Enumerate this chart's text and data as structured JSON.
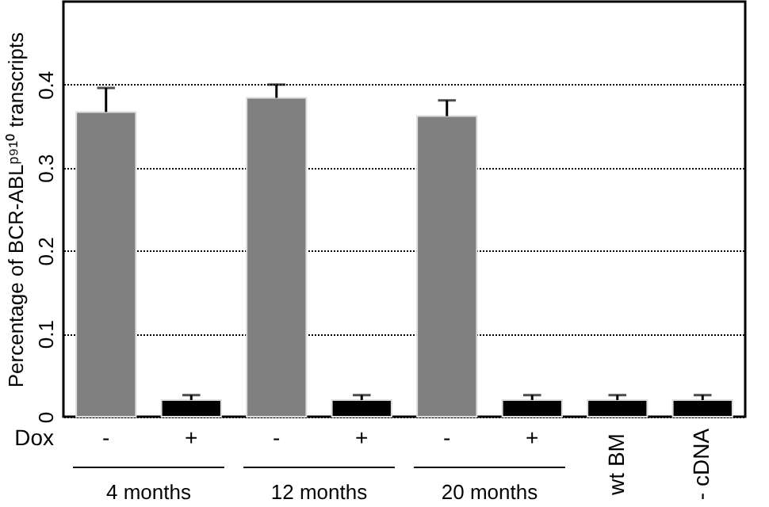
{
  "chart_data": {
    "type": "bar",
    "ylabel": "Percentage of BCR-ABLᵖ⁹¹⁰ transcripts",
    "categories": [
      "-",
      "+",
      "-",
      "+",
      "-",
      "+",
      "wt BM",
      "- cDNA"
    ],
    "values": [
      0.367,
      0.02,
      0.384,
      0.02,
      0.362,
      0.02,
      0.02,
      0.02
    ],
    "colors": [
      "#808080",
      "#000000",
      "#808080",
      "#000000",
      "#808080",
      "#000000",
      "#000000",
      "#000000"
    ],
    "errors": [
      0.029,
      0.006,
      0.016,
      0.006,
      0.019,
      0.006,
      0.006,
      0.006
    ],
    "ylim": [
      0,
      0.5
    ],
    "yticks": [
      0,
      0.1,
      0.2,
      0.3,
      0.4
    ],
    "grid": "y",
    "annotations": [
      "Dox",
      "4 months",
      "12 months",
      "20 months"
    ]
  }
}
